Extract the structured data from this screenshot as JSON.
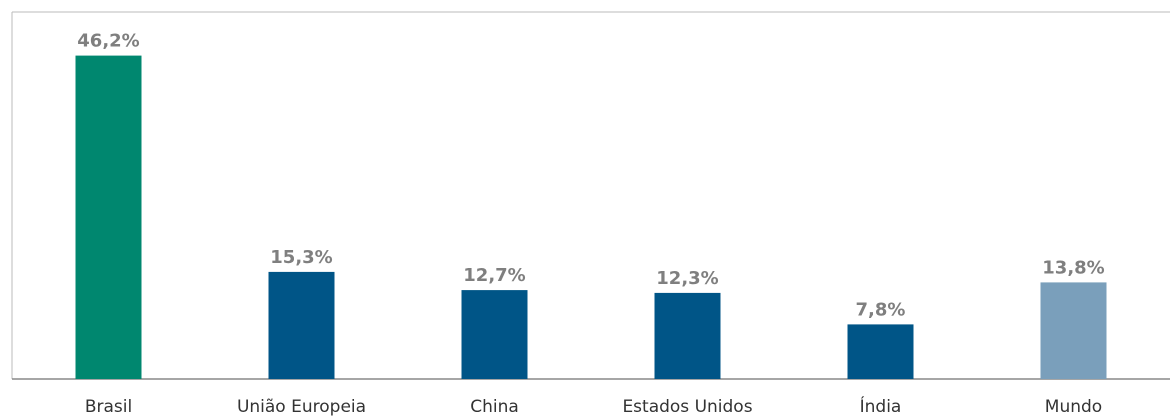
{
  "chart_data": {
    "type": "bar",
    "categories": [
      "Brasil",
      "União Europeia",
      "China",
      "Estados Unidos",
      "Índia",
      "Mundo"
    ],
    "values": [
      46.2,
      15.3,
      12.7,
      12.3,
      7.8,
      13.8
    ],
    "value_labels": [
      "46,2%",
      "15,3%",
      "12,7%",
      "12,3%",
      "7,8%",
      "13,8%"
    ],
    "colors": [
      "#00876f",
      "#005587",
      "#005587",
      "#005587",
      "#005587",
      "#7a9fbb"
    ]
  }
}
